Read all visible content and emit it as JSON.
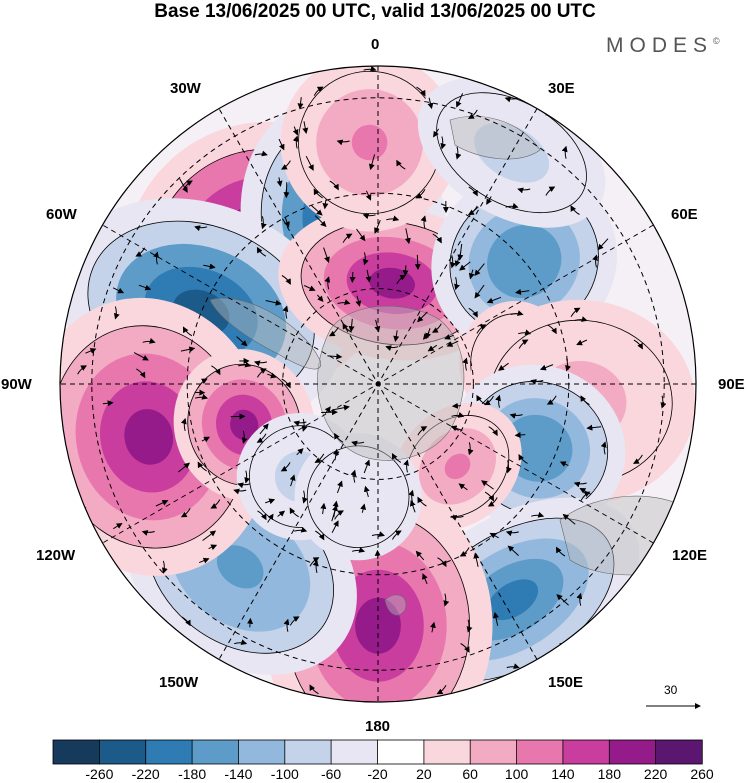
{
  "title": "Base 13/06/2025 00 UTC, valid 13/06/2025 00 UTC",
  "brand": "MODES",
  "brand_mark": "©",
  "longitude_labels": {
    "lon_0": "0",
    "lon_30w": "30W",
    "lon_30e": "30E",
    "lon_60w": "60W",
    "lon_60e": "60E",
    "lon_90w": "90W",
    "lon_90e": "90E",
    "lon_120w": "120W",
    "lon_120e": "120E",
    "lon_150w": "150W",
    "lon_150e": "150E",
    "lon_180": "180"
  },
  "reference_vector": "30",
  "colorbar": {
    "ticks": [
      "-260",
      "-220",
      "-180",
      "-140",
      "-100",
      "-60",
      "-20",
      "20",
      "60",
      "100",
      "140",
      "180",
      "220",
      "260"
    ],
    "colors": [
      "#163a5c",
      "#1c5a8a",
      "#2f7bb3",
      "#5d9cc9",
      "#93b8dd",
      "#c4d2ea",
      "#e8e6f3",
      "#ffffff",
      "#f9d7dd",
      "#f3abc3",
      "#e877ae",
      "#c93d9f",
      "#951b8a",
      "#5b166f"
    ]
  },
  "anomalies": [
    {
      "lon": -43,
      "colat": 27,
      "a": 42,
      "b": 22,
      "value": 260
    },
    {
      "lon": -12,
      "colat": 26,
      "a": 40,
      "b": 16,
      "value": -240
    },
    {
      "lon": -68,
      "colat": 30,
      "a": 46,
      "b": 17,
      "value": -240
    },
    {
      "lon": 8,
      "colat": 16,
      "a": 24,
      "b": 18,
      "value": 200
    },
    {
      "lon": -2,
      "colat": 38,
      "a": 28,
      "b": 14,
      "value": 120
    },
    {
      "lon": 50,
      "colat": 30,
      "a": 30,
      "b": 14,
      "value": -180
    },
    {
      "lon": 82,
      "colat": 22,
      "a": 18,
      "b": 10,
      "value": 100
    },
    {
      "lon": 95,
      "colat": 32,
      "a": 36,
      "b": 16,
      "value": 80
    },
    {
      "lon": 112,
      "colat": 27,
      "a": 28,
      "b": 13,
      "value": -180
    },
    {
      "lon": 136,
      "colat": 18,
      "a": 18,
      "b": 11,
      "value": 110
    },
    {
      "lon": 148,
      "colat": 40,
      "a": 26,
      "b": 22,
      "value": -200
    },
    {
      "lon": 180,
      "colat": 38,
      "a": 44,
      "b": 18,
      "value": 180
    },
    {
      "lon": -143,
      "colat": 36,
      "a": 30,
      "b": 20,
      "value": -170
    },
    {
      "lon": -103,
      "colat": 37,
      "a": 38,
      "b": 22,
      "value": 200
    },
    {
      "lon": -107,
      "colat": 22,
      "a": 22,
      "b": 12,
      "value": 180
    },
    {
      "lon": -140,
      "colat": 19,
      "a": 20,
      "b": 10,
      "value": -90
    },
    {
      "lon": 30,
      "colat": 42,
      "a": 20,
      "b": 16,
      "value": -90
    },
    {
      "lon": -170,
      "colat": 18,
      "a": 20,
      "b": 10,
      "value": -60
    }
  ]
}
